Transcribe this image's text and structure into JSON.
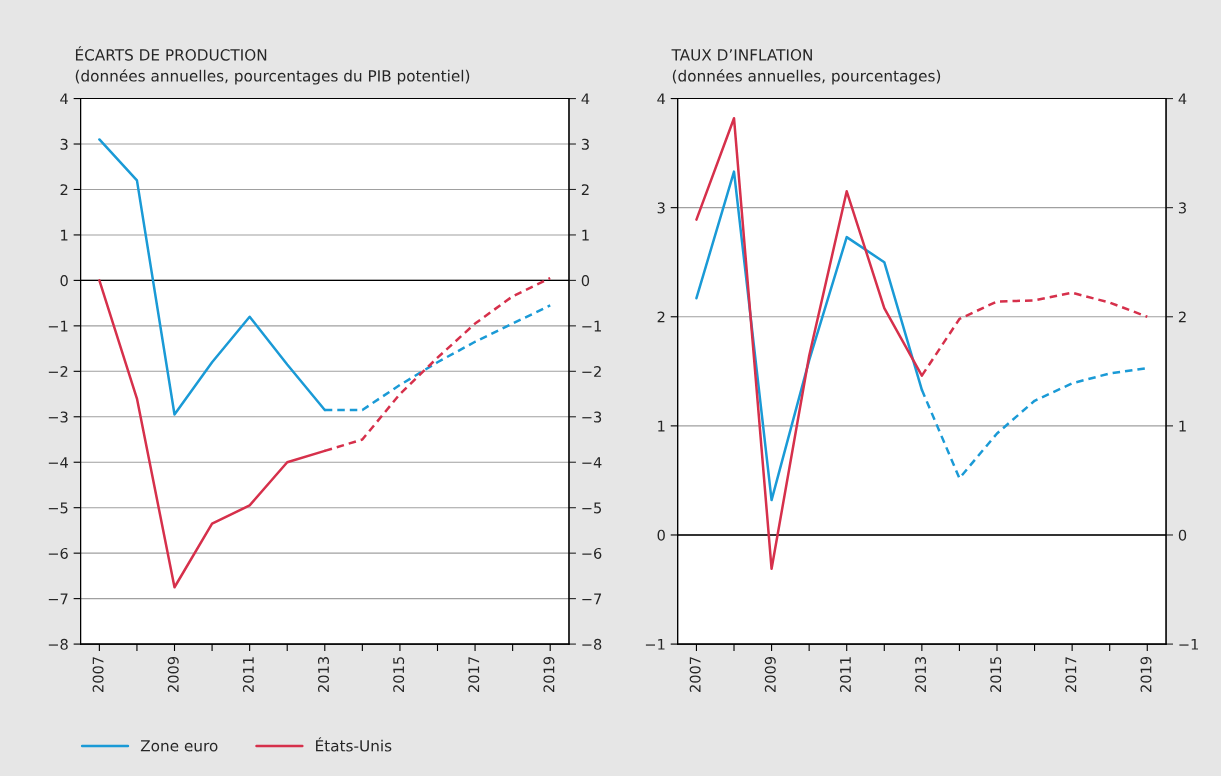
{
  "chart_data": [
    {
      "type": "line",
      "title": "ÉCARTS DE PRODUCTION",
      "subtitle": "(données annuelles, pourcentages du PIB potentiel)",
      "x": [
        2007,
        2008,
        2009,
        2010,
        2011,
        2012,
        2013,
        2014,
        2015,
        2016,
        2017,
        2018,
        2019
      ],
      "series": [
        {
          "name": "Zone euro",
          "color": "#1a9ad6",
          "line_style": "solid",
          "values": [
            3.1,
            2.2,
            -2.95,
            -1.8,
            -0.8,
            -1.85,
            -2.85,
            null,
            null,
            null,
            null,
            null,
            null
          ]
        },
        {
          "name": "États-Unis",
          "color": "#d6304b",
          "line_style": "solid",
          "values": [
            0,
            -2.6,
            -6.75,
            -5.35,
            -4.95,
            -4.0,
            -3.75,
            null,
            null,
            null,
            null,
            null,
            null
          ]
        },
        {
          "color": "#1a9ad6",
          "line_style": "dashed",
          "values": [
            null,
            null,
            null,
            null,
            null,
            null,
            -2.85,
            -2.85,
            -2.3,
            -1.8,
            -1.35,
            -0.95,
            -0.55
          ]
        },
        {
          "color": "#d6304b",
          "line_style": "dashed",
          "values": [
            null,
            null,
            null,
            null,
            null,
            null,
            -3.75,
            -3.5,
            -2.5,
            -1.7,
            -0.95,
            -0.35,
            0.05
          ]
        }
      ],
      "xlim": [
        2006.5,
        2019.5
      ],
      "xticks": [
        2007,
        {
          "value": 2008,
          "label": null
        },
        2009,
        {
          "value": 2010,
          "label": null
        },
        2011,
        {
          "value": 2012,
          "label": null
        },
        2013,
        {
          "value": 2014,
          "label": null
        },
        2015,
        {
          "value": 2016,
          "label": null
        },
        2017,
        {
          "value": 2018,
          "label": null
        },
        2019
      ],
      "ylim": [
        -8,
        4
      ],
      "yticks": [
        -8,
        -7,
        -6,
        -5,
        -4,
        -3,
        -2,
        -1,
        0,
        1,
        2,
        3,
        4
      ],
      "y2lim": [
        -8,
        4
      ],
      "y2ticks": [
        -8,
        -7,
        -6,
        -5,
        -4,
        -3,
        -2,
        -1,
        0,
        1,
        2,
        3,
        4
      ],
      "ref_lines": [
        {
          "axis": "y",
          "value": 0,
          "color": "#000000"
        }
      ],
      "grid": "y",
      "legend": "bottom"
    },
    {
      "type": "line",
      "title": "TAUX D’INFLATION",
      "subtitle": "(données annuelles, pourcentages)",
      "x": [
        2007,
        2008,
        2009,
        2010,
        2011,
        2012,
        2013,
        2014,
        2015,
        2016,
        2017,
        2018,
        2019
      ],
      "series": [
        {
          "color": "#1a9ad6",
          "line_style": "solid",
          "values": [
            2.17,
            3.33,
            0.32,
            1.6,
            2.73,
            2.5,
            1.33,
            null,
            null,
            null,
            null,
            null,
            null
          ]
        },
        {
          "color": "#d6304b",
          "line_style": "solid",
          "values": [
            2.89,
            3.82,
            -0.31,
            1.64,
            3.15,
            2.08,
            1.46,
            null,
            null,
            null,
            null,
            null,
            null
          ]
        },
        {
          "color": "#1a9ad6",
          "line_style": "dashed",
          "values": [
            null,
            null,
            null,
            null,
            null,
            null,
            1.33,
            0.52,
            0.93,
            1.23,
            1.39,
            1.48,
            1.53
          ]
        },
        {
          "color": "#d6304b",
          "line_style": "dashed",
          "values": [
            null,
            null,
            null,
            null,
            null,
            null,
            1.46,
            1.98,
            2.14,
            2.15,
            2.22,
            2.13,
            2.0
          ]
        }
      ],
      "xlim": [
        2006.5,
        2019.5
      ],
      "xticks": [
        2007,
        {
          "value": 2008,
          "label": null
        },
        2009,
        {
          "value": 2010,
          "label": null
        },
        2011,
        {
          "value": 2012,
          "label": null
        },
        2013,
        {
          "value": 2014,
          "label": null
        },
        2015,
        {
          "value": 2016,
          "label": null
        },
        2017,
        {
          "value": 2018,
          "label": null
        },
        2019
      ],
      "ylim": [
        -1,
        4
      ],
      "yticks": [
        -1,
        0,
        1,
        2,
        3,
        4
      ],
      "y2lim": [
        -1,
        4
      ],
      "y2ticks": [
        -1,
        0,
        1,
        2,
        3,
        4
      ],
      "ref_lines": [
        {
          "axis": "y",
          "value": 0,
          "color": "#000000"
        }
      ],
      "grid": "y"
    }
  ]
}
